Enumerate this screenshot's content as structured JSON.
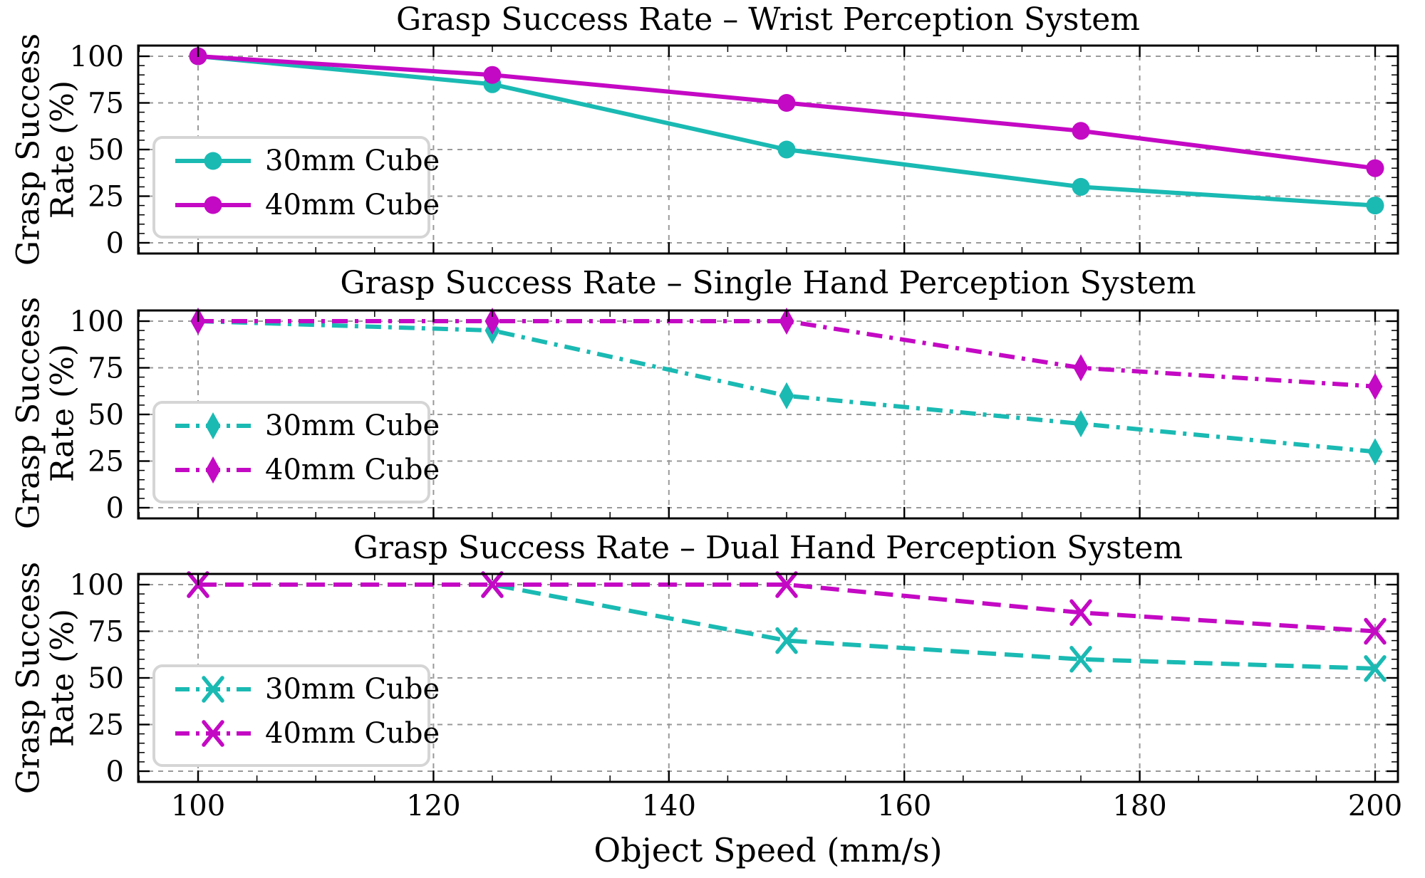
{
  "figure": {
    "background": "#ffffff",
    "xlabel": "Object Speed (mm/s)",
    "ylabel_lines": [
      "Grasp Success",
      "Rate (%)"
    ]
  },
  "style": {
    "cyan": "#1ABAB3",
    "magenta": "#C409C4",
    "grid_color": "#999999",
    "axis_color": "#000000",
    "legend_border": "#d5d5d5",
    "legend_background": "#ffffff"
  },
  "chart_data": [
    {
      "type": "line",
      "title": "Grasp Success Rate – Wrist Perception System",
      "x": [
        100,
        125,
        150,
        175,
        200
      ],
      "series": [
        {
          "name": "30mm Cube",
          "color": "#1ABAB3",
          "marker": "circle",
          "linestyle": "solid",
          "values": [
            100,
            85,
            50,
            30,
            20
          ]
        },
        {
          "name": "40mm Cube",
          "color": "#C409C4",
          "marker": "circle",
          "linestyle": "solid",
          "values": [
            100,
            90,
            75,
            60,
            40
          ]
        }
      ],
      "xlim": [
        100,
        200
      ],
      "ylim": [
        0,
        100
      ],
      "xticks": [
        100,
        120,
        140,
        160,
        180,
        200
      ],
      "yticks": [
        0,
        25,
        50,
        75,
        100
      ],
      "grid": true,
      "legend_position": "lower left",
      "legend": [
        "30mm Cube",
        "40mm Cube"
      ]
    },
    {
      "type": "line",
      "title": "Grasp Success Rate – Single Hand Perception System",
      "x": [
        100,
        125,
        150,
        175,
        200
      ],
      "series": [
        {
          "name": "30mm Cube",
          "color": "#1ABAB3",
          "marker": "thin-diamond",
          "linestyle": "dashdot",
          "values": [
            100,
            95,
            60,
            45,
            30
          ]
        },
        {
          "name": "40mm Cube",
          "color": "#C409C4",
          "marker": "thin-diamond",
          "linestyle": "dashdot",
          "values": [
            100,
            100,
            100,
            75,
            65
          ]
        }
      ],
      "xlim": [
        100,
        200
      ],
      "ylim": [
        0,
        100
      ],
      "xticks": [
        100,
        120,
        140,
        160,
        180,
        200
      ],
      "yticks": [
        0,
        25,
        50,
        75,
        100
      ],
      "grid": true,
      "legend_position": "lower left",
      "legend": [
        "30mm Cube",
        "40mm Cube"
      ]
    },
    {
      "type": "line",
      "title": "Grasp Success Rate – Dual Hand Perception System",
      "x": [
        100,
        125,
        150,
        175,
        200
      ],
      "series": [
        {
          "name": "30mm Cube",
          "color": "#1ABAB3",
          "marker": "x",
          "linestyle": "dashed",
          "values": [
            100,
            100,
            70,
            60,
            55
          ]
        },
        {
          "name": "40mm Cube",
          "color": "#C409C4",
          "marker": "x",
          "linestyle": "dashed",
          "values": [
            100,
            100,
            100,
            85,
            75
          ]
        }
      ],
      "xlabel": "Object Speed (mm/s)",
      "xlim": [
        100,
        200
      ],
      "ylim": [
        0,
        100
      ],
      "xticks": [
        100,
        120,
        140,
        160,
        180,
        200
      ],
      "yticks": [
        0,
        25,
        50,
        75,
        100
      ],
      "grid": true,
      "legend_position": "lower left",
      "legend": [
        "30mm Cube",
        "40mm Cube"
      ]
    }
  ]
}
